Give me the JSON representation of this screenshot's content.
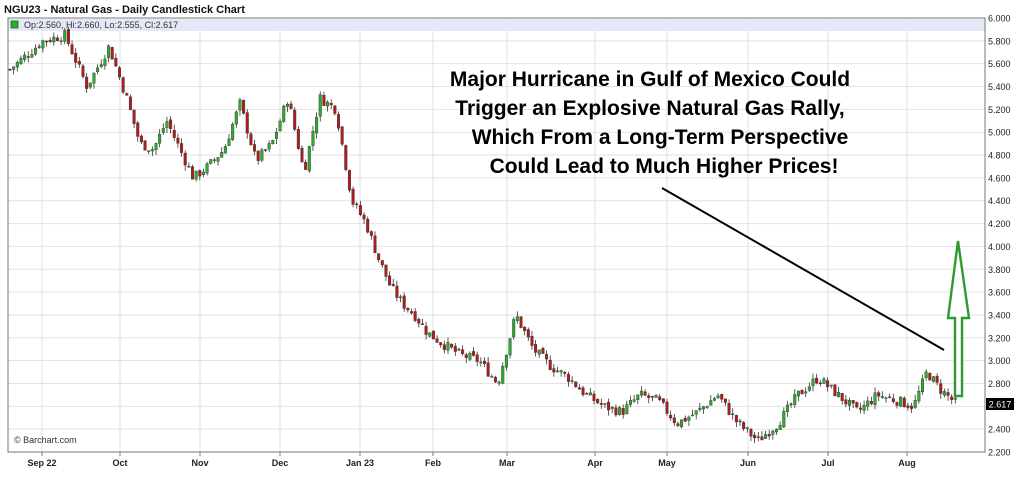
{
  "chart_data": {
    "type": "candlestick",
    "title": "NGU23 - Natural Gas - Daily Candlestick Chart",
    "ohlc_label": "Op:2.560, Hi:2.660, Lo:2.555, Cl:2.617",
    "watermark": "© Barchart.com",
    "annotation": [
      "Major Hurricane in Gulf of Mexico Could",
      "Trigger an Explosive Natural Gas Rally,",
      "Which From a Long-Term Perspective",
      "Could Lead to Much Higher Prices!"
    ],
    "last_price": "2.617",
    "ylim": [
      2.2,
      6.0
    ],
    "y_ticks": [
      "2.200",
      "2.400",
      "2.600",
      "2.800",
      "3.000",
      "3.200",
      "3.400",
      "3.600",
      "3.800",
      "4.000",
      "4.200",
      "4.400",
      "4.600",
      "4.800",
      "5.000",
      "5.200",
      "5.400",
      "5.600",
      "5.800",
      "6.000"
    ],
    "x_ticks": [
      "Sep 22",
      "Oct",
      "Nov",
      "Dec",
      "Jan 23",
      "Feb",
      "Mar",
      "Apr",
      "May",
      "Jun",
      "Jul",
      "Aug"
    ],
    "close_anchors": [
      [
        "Sep 22",
        5.55
      ],
      [
        "Sep 22",
        5.8
      ],
      [
        "Sep 22",
        5.85
      ],
      [
        "Sep 22",
        5.4
      ],
      [
        "Sep 22",
        5.75
      ],
      [
        "Oct",
        5.3
      ],
      [
        "Oct",
        4.9
      ],
      [
        "Oct",
        4.85
      ],
      [
        "Oct",
        5.1
      ],
      [
        "Oct",
        4.85
      ],
      [
        "Oct",
        4.6
      ],
      [
        "Nov",
        4.7
      ],
      [
        "Nov",
        4.85
      ],
      [
        "Nov",
        5.25
      ],
      [
        "Nov",
        4.75
      ],
      [
        "Nov",
        4.9
      ],
      [
        "Dec",
        5.3
      ],
      [
        "Dec",
        4.65
      ],
      [
        "Dec",
        5.3
      ],
      [
        "Dec",
        5.2
      ],
      [
        "Dec",
        4.4
      ],
      [
        "Jan 23",
        4.2
      ],
      [
        "Jan 23",
        3.9
      ],
      [
        "Jan 23",
        3.65
      ],
      [
        "Jan 23",
        3.5
      ],
      [
        "Jan 23",
        3.4
      ],
      [
        "Jan 23",
        3.25
      ],
      [
        "Feb",
        3.15
      ],
      [
        "Feb",
        3.05
      ],
      [
        "Feb",
        3.0
      ],
      [
        "Feb",
        2.8
      ],
      [
        "Mar",
        3.4
      ],
      [
        "Mar",
        3.1
      ],
      [
        "Mar",
        2.95
      ],
      [
        "Mar",
        2.85
      ],
      [
        "Mar",
        2.7
      ],
      [
        "Apr",
        2.6
      ],
      [
        "Apr",
        2.55
      ],
      [
        "Apr",
        2.7
      ],
      [
        "Apr",
        2.65
      ],
      [
        "May",
        2.45
      ],
      [
        "May",
        2.55
      ],
      [
        "May",
        2.7
      ],
      [
        "May",
        2.45
      ],
      [
        "Jun",
        2.3
      ],
      [
        "Jun",
        2.45
      ],
      [
        "Jun",
        2.7
      ],
      [
        "Jun",
        2.85
      ],
      [
        "Jul",
        2.7
      ],
      [
        "Jul",
        2.55
      ],
      [
        "Jul",
        2.7
      ],
      [
        "Jul",
        2.65
      ],
      [
        "Aug",
        2.6
      ],
      [
        "Aug",
        2.9
      ],
      [
        "Aug",
        2.75
      ],
      [
        "Aug",
        2.617
      ]
    ],
    "grid": true,
    "up_color": "#2cac2c",
    "down_color": "#b01c1c",
    "arrow_color": "#2f9b2f",
    "line_color": "#000000"
  }
}
